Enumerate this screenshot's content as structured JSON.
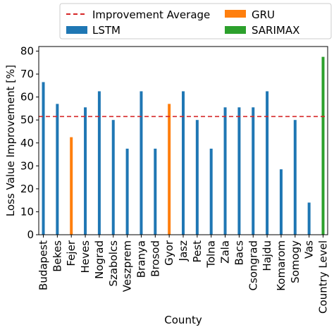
{
  "chart_data": {
    "type": "bar",
    "xlabel": "County",
    "ylabel": "Loss Value Improvement [%]",
    "ylim": [
      0,
      82
    ],
    "yticks": [
      0,
      10,
      20,
      30,
      40,
      50,
      60,
      70,
      80
    ],
    "grid": false,
    "legend_position": "top-center",
    "average_line": {
      "name": "Improvement Average",
      "value": 51.5,
      "color": "#d62728",
      "style": "dashed"
    },
    "series": [
      {
        "name": "LSTM",
        "color": "#1f77b4"
      },
      {
        "name": "GRU",
        "color": "#ff7f0e"
      },
      {
        "name": "SARIMAX",
        "color": "#2ca02c"
      }
    ],
    "legend": [
      {
        "label": "Improvement Average",
        "kind": "line",
        "color": "#d62728"
      },
      {
        "label": "GRU",
        "kind": "patch",
        "color": "#ff7f0e"
      },
      {
        "label": "LSTM",
        "kind": "patch",
        "color": "#1f77b4"
      },
      {
        "label": "SARIMAX",
        "kind": "patch",
        "color": "#2ca02c"
      }
    ],
    "points": [
      {
        "category": "Budapest",
        "value": 66.5,
        "series": "LSTM"
      },
      {
        "category": "Bekes",
        "value": 57,
        "series": "LSTM"
      },
      {
        "category": "Fejer",
        "value": 42.5,
        "series": "GRU"
      },
      {
        "category": "Heves",
        "value": 55.5,
        "series": "LSTM"
      },
      {
        "category": "Nograd",
        "value": 62.5,
        "series": "LSTM"
      },
      {
        "category": "Szabolcs",
        "value": 50,
        "series": "LSTM"
      },
      {
        "category": "Veszprem",
        "value": 37.5,
        "series": "LSTM"
      },
      {
        "category": "Branya",
        "value": 62.5,
        "series": "LSTM"
      },
      {
        "category": "Brosod",
        "value": 37.5,
        "series": "LSTM"
      },
      {
        "category": "Gyor",
        "value": 57,
        "series": "GRU"
      },
      {
        "category": "Jasz",
        "value": 62.5,
        "series": "LSTM"
      },
      {
        "category": "Pest",
        "value": 50,
        "series": "LSTM"
      },
      {
        "category": "Tolna",
        "value": 37.5,
        "series": "LSTM"
      },
      {
        "category": "Zala",
        "value": 55.5,
        "series": "LSTM"
      },
      {
        "category": "Bacs",
        "value": 55.5,
        "series": "LSTM"
      },
      {
        "category": "Csongrad",
        "value": 55.5,
        "series": "LSTM"
      },
      {
        "category": "Hajdu",
        "value": 62.5,
        "series": "LSTM"
      },
      {
        "category": "Komarom",
        "value": 28.5,
        "series": "LSTM"
      },
      {
        "category": "Somogy",
        "value": 50,
        "series": "LSTM"
      },
      {
        "category": "Vas",
        "value": 14,
        "series": "LSTM"
      },
      {
        "category": "Country Level",
        "value": 77.5,
        "series": "SARIMAX"
      }
    ]
  }
}
